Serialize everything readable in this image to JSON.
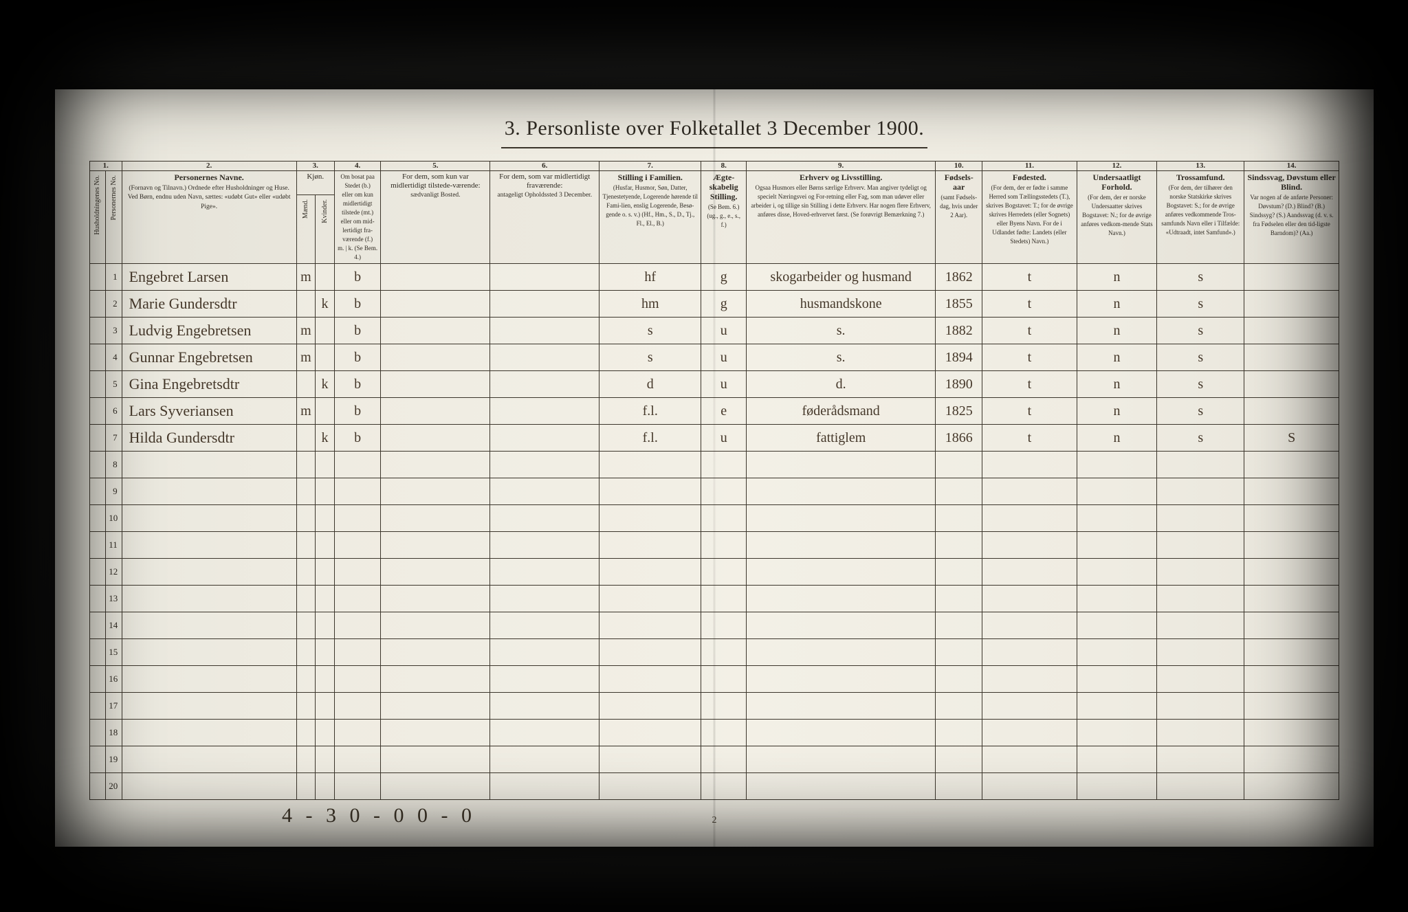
{
  "colors": {
    "photo_bg": "#2a2a2a",
    "paper": "#f1eee4",
    "ink": "#2f2a22",
    "handwriting": "#45382a",
    "rule": "#3b352b"
  },
  "title": "3.  Personliste over Folketallet 3 December 1900.",
  "column_numbers": [
    "1.",
    "2.",
    "3.",
    "4.",
    "5.",
    "6.",
    "7.",
    "8.",
    "9.",
    "10.",
    "11.",
    "12.",
    "13.",
    "14."
  ],
  "headers": {
    "c1": "Husholdningenes No.",
    "c2": "Personernes No.",
    "c3_title": "Personernes Navne.",
    "c3_sub": "(Fornavn og Tilnavn.)\nOrdnede efter Husholdninger og Huse.\nVed Børn, endnu uden Navn, sættes: «udøbt Gut» eller «udøbt Pige».",
    "c4_group": "Kjøn.",
    "c4a": "Mænd.",
    "c4b": "Kvinder.",
    "c5_line1": "Om bosat paa Stedet (b.)",
    "c5_line2": "eller om kun midlertidigt tilstede (mt.)",
    "c5_line3": "eller om mid-lertidigt fra-værende (f.)",
    "c5_line4": "m. | k. (Se Bem. 4.)",
    "c6_title": "For dem, som kun var midlertidigt tilstede-værende:",
    "c6_sub": "sædvanligt Bosted.",
    "c7_title": "For dem, som var midlertidigt fraværende:",
    "c7_sub": "antageligt Opholdssted 3 December.",
    "c8_title": "Stilling i Familien.",
    "c8_sub": "(Husfar, Husmor, Søn, Datter, Tjenestetyende, Logerende hørende til Fami-lien, enslig Logerende, Besø-gende o. s. v.)\n(Hf., Hm., S., D., Tj., Fl., El., B.)",
    "c9_title": "Ægte-skabelig Stilling.",
    "c9_sub": "(Se Bem. 6.)\n(ug., g., e., s., f.)",
    "c10_title": "Erhverv og Livsstilling.",
    "c10_sub": "Ogsaa Husmors eller Børns særlige Erhverv. Man angiver tydeligt og specielt Næringsvei og For-retning eller Fag, som man udøver eller arbeider i, og tillige sin Stilling i dette Erhverv. Har nogen flere Erhverv, anføres disse, Hoved-erhvervet først.\n(Se forøvrigt Bemærkning 7.)",
    "c11_title": "Fødsels-aar",
    "c11_sub": "(samt Fødsels-dag, hvis under 2 Aar).",
    "c12_title": "Fødested.",
    "c12_sub": "(For dem, der er fødte i samme Herred som Tællingsstedets (T.), skrives Bogstavet: T.; for de øvrige skrives Herredets (eller Sognets) eller Byens Navn. For de i Udlandet fødte: Landets (eller Stedets) Navn.)",
    "c13_title": "Undersaatligt Forhold.",
    "c13_sub": "(For dem, der er norske Undersaatter skrives Bogstavet: N.; for de øvrige anføres vedkom-mende Stats Navn.)",
    "c14_title": "Trossamfund.",
    "c14_sub": "(For dem, der tilhører den norske Statskirke skrives Bogstavet: S.; for de øvrige anføres vedkommende Tros-samfunds Navn eller i Tilfælde: «Udtraadt, intet Samfund».)",
    "c15_title": "Sindssvag, Døvstum eller Blind.",
    "c15_sub": "Var nogen af de anførte Personer:\nDøvstum?   (D.)\nBlind?   (B.)\nSindssyg?   (S.)\nAandssvag (d. v. s. fra Fødselen eller den tid-ligste Barndom)? (Aa.)"
  },
  "rows": [
    {
      "n": "1",
      "name": "Engebret Larsen",
      "mk": "m",
      "bf": "b",
      "fam": "hf",
      "eg": "g",
      "erhv": "skogarbeider og husmand",
      "aar": "1862",
      "fsted": "t",
      "und": "n",
      "tro": "s",
      "sds": ""
    },
    {
      "n": "2",
      "name": "Marie Gundersdtr",
      "mk": "k",
      "bf": "b",
      "fam": "hm",
      "eg": "g",
      "erhv": "husmandskone",
      "aar": "1855",
      "fsted": "t",
      "und": "n",
      "tro": "s",
      "sds": ""
    },
    {
      "n": "3",
      "name": "Ludvig Engebretsen",
      "mk": "m",
      "bf": "b",
      "fam": "s",
      "eg": "u",
      "erhv": "s.",
      "aar": "1882",
      "fsted": "t",
      "und": "n",
      "tro": "s",
      "sds": ""
    },
    {
      "n": "4",
      "name": "Gunnar Engebretsen",
      "mk": "m",
      "bf": "b",
      "fam": "s",
      "eg": "u",
      "erhv": "s.",
      "aar": "1894",
      "fsted": "t",
      "und": "n",
      "tro": "s",
      "sds": ""
    },
    {
      "n": "5",
      "name": "Gina Engebretsdtr",
      "mk": "k",
      "bf": "b",
      "fam": "d",
      "eg": "u",
      "erhv": "d.",
      "aar": "1890",
      "fsted": "t",
      "und": "n",
      "tro": "s",
      "sds": ""
    },
    {
      "n": "6",
      "name": "Lars Syveriansen",
      "mk": "m",
      "bf": "b",
      "fam": "f.l.",
      "eg": "e",
      "erhv": "føderådsmand",
      "aar": "1825",
      "fsted": "t",
      "und": "n",
      "tro": "s",
      "sds": ""
    },
    {
      "n": "7",
      "name": "Hilda Gundersdtr",
      "mk": "k",
      "bf": "b",
      "fam": "f.l.",
      "eg": "u",
      "erhv": "fattiglem",
      "aar": "1866",
      "fsted": "t",
      "und": "n",
      "tro": "s",
      "sds": "S"
    }
  ],
  "total_body_rows": 20,
  "footer_scrawl": "4 - 3   0 - 0   0 - 0",
  "footer_pagenum": "2"
}
